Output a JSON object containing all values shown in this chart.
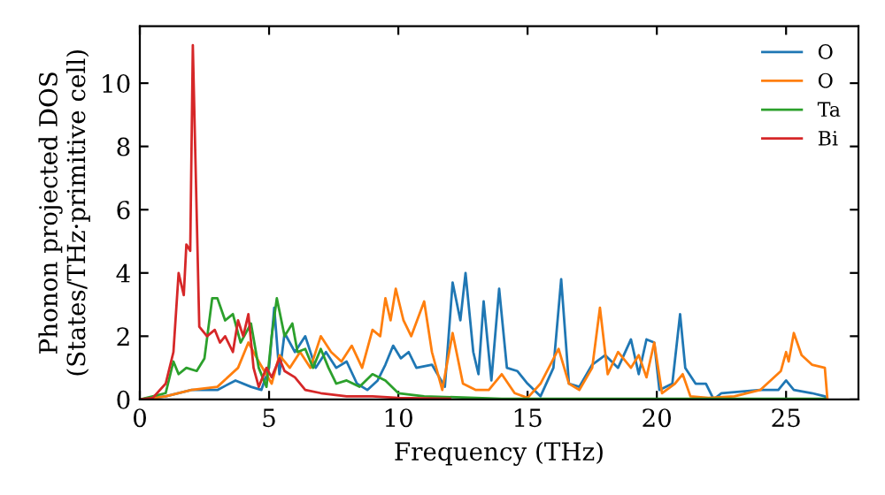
{
  "chart_data": {
    "type": "line",
    "xlabel": "Frequency (THz)",
    "ylabel": "Phonon projected DOS\n(States/THz·primitive cell)",
    "xlim": [
      0,
      27.8
    ],
    "ylim": [
      0,
      11.8
    ],
    "xticks": [
      0,
      5,
      10,
      15,
      20,
      25
    ],
    "yticks": [
      0,
      2,
      4,
      6,
      8,
      10
    ],
    "grid": false,
    "legend": "top right",
    "series": [
      {
        "name": "O",
        "color": "#1f77b4",
        "x": [
          0,
          1,
          2,
          3,
          3.7,
          4.3,
          4.7,
          5.0,
          5.2,
          5.4,
          5.6,
          6.0,
          6.4,
          6.8,
          7.2,
          7.6,
          8.0,
          8.4,
          8.8,
          9.2,
          9.5,
          9.8,
          10.1,
          10.4,
          10.7,
          11.3,
          11.8,
          12.1,
          12.4,
          12.6,
          12.9,
          13.1,
          13.3,
          13.6,
          13.9,
          14.2,
          14.6,
          15.0,
          15.5,
          16.0,
          16.3,
          16.6,
          17,
          17.5,
          18,
          18.5,
          19.0,
          19.3,
          19.6,
          19.9,
          20.1,
          20.6,
          20.9,
          21.1,
          21.5,
          21.9,
          22.2,
          22.5,
          24,
          24.7,
          25,
          25.3,
          26,
          26.5,
          26.6
        ],
        "values": [
          0,
          0.1,
          0.3,
          0.3,
          0.6,
          0.4,
          0.3,
          1.0,
          2.9,
          0.8,
          2.1,
          1.5,
          2.0,
          1.0,
          1.5,
          1.0,
          1.2,
          0.5,
          0.3,
          0.6,
          1.1,
          1.7,
          1.3,
          1.5,
          1.0,
          1.1,
          0.4,
          3.7,
          2.5,
          4.0,
          1.5,
          0.8,
          3.1,
          0.6,
          3.5,
          1.0,
          0.9,
          0.5,
          0.1,
          1.0,
          3.8,
          0.5,
          0.4,
          1.1,
          1.4,
          1.0,
          1.9,
          0.8,
          1.9,
          1.8,
          0.3,
          0.5,
          2.7,
          1.0,
          0.5,
          0.5,
          0.0,
          0.2,
          0.3,
          0.3,
          0.6,
          0.3,
          0.2,
          0.1,
          0
        ]
      },
      {
        "name": "O",
        "color": "#ff7f0e",
        "x": [
          0,
          1,
          2,
          3,
          3.8,
          4.2,
          4.6,
          5.1,
          5.4,
          5.8,
          6.2,
          6.6,
          7,
          7.4,
          7.8,
          8.2,
          8.6,
          9.0,
          9.3,
          9.5,
          9.7,
          9.9,
          10.2,
          10.5,
          11.0,
          11.3,
          11.7,
          12.1,
          12.5,
          13,
          13.5,
          14,
          14.5,
          15,
          15.5,
          16.2,
          16.6,
          17,
          17.5,
          17.8,
          18.1,
          18.5,
          19,
          19.3,
          19.6,
          19.9,
          20.2,
          20.7,
          21,
          21.3,
          22,
          23,
          24,
          24.8,
          25,
          25.1,
          25.3,
          25.6,
          26,
          26.5,
          26.6
        ],
        "values": [
          0,
          0.1,
          0.3,
          0.4,
          1.0,
          1.8,
          1.2,
          0.5,
          1.4,
          1.0,
          1.5,
          1.0,
          2.0,
          1.5,
          1.2,
          1.7,
          1.0,
          2.2,
          2.0,
          3.2,
          2.5,
          3.5,
          2.5,
          2.0,
          3.1,
          1.5,
          0.3,
          2.1,
          0.5,
          0.3,
          0.3,
          0.8,
          0.2,
          0.05,
          0.5,
          1.6,
          0.5,
          0.3,
          1.0,
          2.9,
          0.8,
          1.5,
          1.0,
          1.4,
          0.7,
          1.8,
          0.2,
          0.5,
          0.8,
          0.1,
          0.05,
          0.1,
          0.3,
          0.9,
          1.5,
          1.2,
          2.1,
          1.4,
          1.1,
          1.0,
          0
        ]
      },
      {
        "name": "Ta",
        "color": "#2ca02c",
        "x": [
          0,
          1,
          1.3,
          1.5,
          1.8,
          2.2,
          2.5,
          2.8,
          3.0,
          3.3,
          3.6,
          3.9,
          4.3,
          4.6,
          4.9,
          5.1,
          5.3,
          5.6,
          5.9,
          6.1,
          6.4,
          6.7,
          7.0,
          7.3,
          7.6,
          8,
          8.5,
          9,
          9.5,
          10,
          11,
          13,
          14,
          26.5
        ],
        "values": [
          0,
          0.2,
          1.2,
          0.8,
          1.0,
          0.9,
          1.3,
          3.2,
          3.2,
          2.5,
          2.7,
          1.8,
          2.4,
          1.0,
          0.4,
          2.0,
          3.2,
          2.0,
          2.4,
          1.5,
          1.6,
          1.0,
          1.6,
          1.0,
          0.5,
          0.6,
          0.4,
          0.8,
          0.6,
          0.2,
          0.1,
          0.05,
          0.02,
          0.02
        ]
      },
      {
        "name": "Bi",
        "color": "#d62728",
        "x": [
          0,
          0.5,
          1,
          1.3,
          1.5,
          1.7,
          1.8,
          1.95,
          2.05,
          2.3,
          2.6,
          2.9,
          3.1,
          3.3,
          3.6,
          3.8,
          4.0,
          4.2,
          4.4,
          4.6,
          4.9,
          5.1,
          5.4,
          5.6,
          6.0,
          6.4,
          7,
          8,
          9,
          10,
          12
        ],
        "values": [
          0,
          0.05,
          0.5,
          1.5,
          4.0,
          3.3,
          4.9,
          4.7,
          11.2,
          2.3,
          2.0,
          2.2,
          1.8,
          2.0,
          1.5,
          2.5,
          2.0,
          2.7,
          1.0,
          0.4,
          1.0,
          0.7,
          1.3,
          0.9,
          0.7,
          0.3,
          0.2,
          0.1,
          0.1,
          0.05,
          0.02
        ]
      }
    ]
  }
}
